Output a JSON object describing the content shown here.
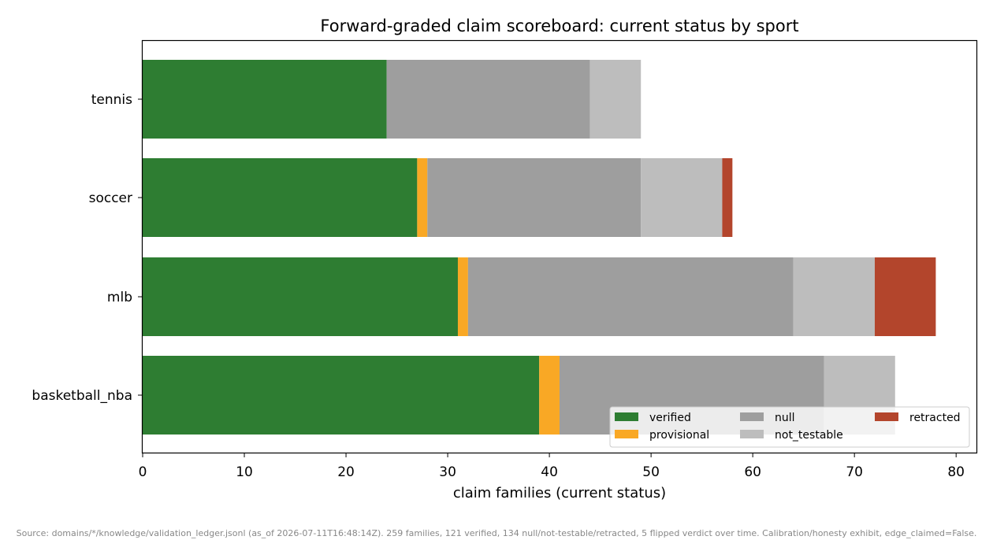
{
  "chart_data": {
    "type": "bar",
    "orientation": "horizontal",
    "stacked": true,
    "title": "Forward-graded claim scoreboard: current status by sport",
    "xlabel": "claim families (current status)",
    "ylabel": "",
    "categories": [
      "tennis",
      "soccer",
      "mlb",
      "basketball_nba"
    ],
    "xlim": [
      0,
      82
    ],
    "xticks": [
      0,
      10,
      20,
      30,
      40,
      50,
      60,
      70,
      80
    ],
    "grid": false,
    "legend": "bottom-right",
    "series": [
      {
        "name": "verified",
        "color": "#2e7d32",
        "values": [
          24,
          27,
          31,
          39
        ]
      },
      {
        "name": "provisional",
        "color": "#f9a825",
        "values": [
          0,
          1,
          1,
          2
        ]
      },
      {
        "name": "null",
        "color": "#9e9e9e",
        "values": [
          20,
          21,
          32,
          26
        ]
      },
      {
        "name": "not_testable",
        "color": "#bdbdbd",
        "values": [
          5,
          8,
          8,
          7
        ]
      },
      {
        "name": "retracted",
        "color": "#b3452c",
        "values": [
          0,
          1,
          6,
          0
        ]
      }
    ]
  },
  "caption": "Source: domains/*/knowledge/validation_ledger.jsonl (as_of 2026-07-11T16:48:14Z). 259 families, 121 verified, 134 null/not-testable/retracted, 5 flipped verdict over time. Calibration/honesty exhibit, edge_claimed=False."
}
